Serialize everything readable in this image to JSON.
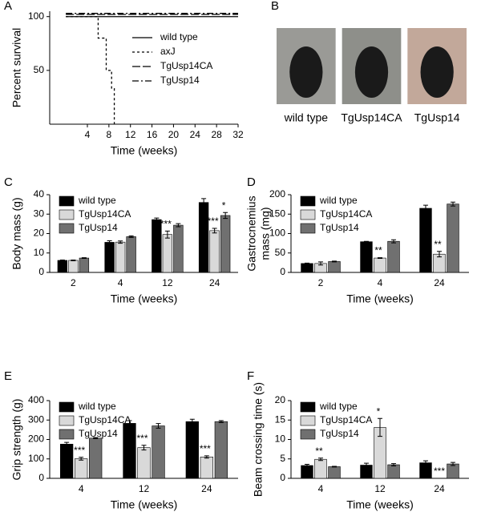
{
  "chart_data": [
    {
      "type": "line",
      "label": "A",
      "xlabel": "Time (weeks)",
      "ylabel": "Percent survival",
      "xlim": [
        -3,
        32
      ],
      "xticks": [
        4,
        8,
        12,
        16,
        20,
        24,
        28,
        32
      ],
      "ylim": [
        0,
        105
      ],
      "yticks": [
        50,
        100
      ],
      "series": [
        {
          "name": "wild type",
          "color": "#000000",
          "linestyle": "solid",
          "x": [
            0,
            32
          ],
          "values": [
            100,
            100
          ]
        },
        {
          "name": "axJ",
          "color": "#000000",
          "linestyle": "dashed",
          "x": [
            0,
            6,
            6,
            7.5,
            7.5,
            8.5,
            8.5,
            9,
            9
          ],
          "values": [
            100,
            100,
            80,
            80,
            50,
            50,
            33,
            33,
            0
          ]
        },
        {
          "name": "TgUsp14CA",
          "color": "#000000",
          "linestyle": "longdash",
          "x": [
            0,
            32
          ],
          "values": [
            102,
            102
          ]
        },
        {
          "name": "TgUsp14",
          "color": "#000000",
          "linestyle": "dashdot",
          "x": [
            0,
            32
          ],
          "values": [
            103,
            103
          ]
        }
      ]
    },
    {
      "type": "images",
      "label": "B",
      "labels": [
        "wild type",
        "TgUsp14CA",
        "TgUsp14"
      ]
    },
    {
      "type": "bar",
      "label": "C",
      "xlabel": "Time (weeks)",
      "ylabel": "Body mass (g)",
      "categories": [
        "2",
        "4",
        "12",
        "24"
      ],
      "ylim": [
        0,
        40
      ],
      "yticks": [
        0,
        10,
        20,
        30,
        40
      ],
      "series": [
        {
          "name": "wild type",
          "color": "#000000",
          "values": [
            6.2,
            15.5,
            27.2,
            36
          ],
          "errors": [
            0.2,
            0.8,
            0.8,
            2
          ],
          "stars": [
            null,
            null,
            null,
            null
          ]
        },
        {
          "name": "TgUsp14CA",
          "color": "#d9d9d9",
          "values": [
            6.2,
            15.6,
            19.5,
            21.5
          ],
          "errors": [
            0.2,
            0.6,
            1.8,
            1.2
          ],
          "stars": [
            null,
            null,
            "***",
            "***"
          ]
        },
        {
          "name": "TgUsp14",
          "color": "#707070",
          "values": [
            7.4,
            18.4,
            24.3,
            29.3
          ],
          "errors": [
            0.2,
            0.4,
            0.8,
            1.5
          ],
          "stars": [
            null,
            null,
            null,
            "*"
          ]
        }
      ]
    },
    {
      "type": "bar",
      "label": "D",
      "xlabel": "Time (weeks)",
      "ylabel": [
        "Gastrocnemius",
        "mass (mg)"
      ],
      "categories": [
        "2",
        "4",
        "24"
      ],
      "ylim": [
        0,
        200
      ],
      "yticks": [
        0,
        50,
        100,
        150,
        200
      ],
      "series": [
        {
          "name": "wild type",
          "color": "#000000",
          "values": [
            23,
            79,
            165
          ],
          "errors": [
            1,
            1,
            8
          ],
          "stars": [
            null,
            null,
            null
          ]
        },
        {
          "name": "TgUsp14CA",
          "color": "#d9d9d9",
          "values": [
            23,
            37,
            47
          ],
          "errors": [
            4,
            1,
            7
          ],
          "stars": [
            null,
            "**",
            "**"
          ]
        },
        {
          "name": "TgUsp14",
          "color": "#707070",
          "values": [
            28,
            80,
            176
          ],
          "errors": [
            1,
            4,
            5
          ],
          "stars": [
            null,
            null,
            null
          ]
        }
      ]
    },
    {
      "type": "bar",
      "label": "E",
      "xlabel": "Time (weeks)",
      "ylabel": "Grip strength (g)",
      "categories": [
        "4",
        "12",
        "24"
      ],
      "ylim": [
        0,
        400
      ],
      "yticks": [
        0,
        100,
        200,
        300,
        400
      ],
      "series": [
        {
          "name": "wild type",
          "color": "#000000",
          "values": [
            176,
            283,
            292
          ],
          "errors": [
            9,
            14,
            12
          ],
          "stars": [
            null,
            null,
            null
          ]
        },
        {
          "name": "TgUsp14CA",
          "color": "#d9d9d9",
          "values": [
            101,
            158,
            110
          ],
          "errors": [
            7,
            12,
            6
          ],
          "stars": [
            "***",
            "***",
            "***"
          ]
        },
        {
          "name": "TgUsp14",
          "color": "#707070",
          "values": [
            207,
            270,
            292
          ],
          "errors": [
            3,
            12,
            5
          ],
          "stars": [
            null,
            null,
            null
          ]
        }
      ]
    },
    {
      "type": "bar",
      "label": "F",
      "xlabel": "Time (weeks)",
      "ylabel": "Beam crossing time (s)",
      "categories": [
        "4",
        "12",
        "24"
      ],
      "ylim": [
        0,
        20
      ],
      "yticks": [
        0,
        5,
        10,
        15,
        20
      ],
      "series": [
        {
          "name": "wild type",
          "color": "#000000",
          "values": [
            3.3,
            3.4,
            4.0
          ],
          "errors": [
            0.3,
            0.5,
            0.5
          ],
          "stars": [
            null,
            null,
            null
          ]
        },
        {
          "name": "TgUsp14CA",
          "color": "#d9d9d9",
          "values": [
            4.9,
            13.1,
            null
          ],
          "errors": [
            0.3,
            2.3,
            null
          ],
          "stars": [
            "**",
            "*",
            "***"
          ]
        },
        {
          "name": "TgUsp14",
          "color": "#707070",
          "values": [
            3.0,
            3.5,
            3.7
          ],
          "errors": [
            0.1,
            0.3,
            0.4
          ],
          "stars": [
            null,
            null,
            null
          ]
        }
      ]
    }
  ]
}
